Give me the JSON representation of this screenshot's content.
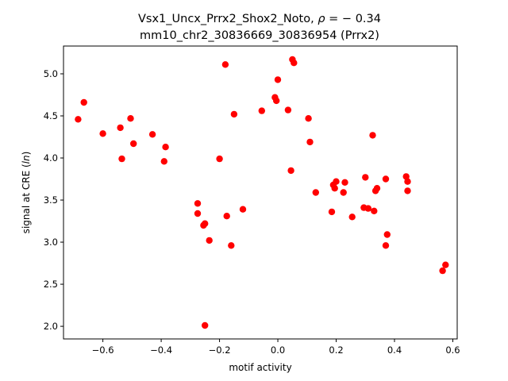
{
  "chart_data": {
    "type": "scatter",
    "title_prefix": "Vsx1_Uncx_Prrx2_Shox2_Noto, ",
    "title_rho_symbol": "ρ",
    "title_rho_value": " = − 0.34",
    "title_line2": "mm10_chr2_30836669_30836954 (Prrx2)",
    "xlabel": "motif activity",
    "ylabel_prefix": "signal at CRE (",
    "ylabel_italic": "ln",
    "ylabel_suffix": ")",
    "xlim": [
      -0.735,
      0.615
    ],
    "ylim": [
      1.85,
      5.33
    ],
    "xticks": [
      -0.6,
      -0.4,
      -0.2,
      0.0,
      0.2,
      0.4,
      0.6
    ],
    "xtick_labels": [
      "−0.6",
      "−0.4",
      "−0.2",
      "0.0",
      "0.2",
      "0.4",
      "0.6"
    ],
    "yticks": [
      2.0,
      2.5,
      3.0,
      3.5,
      4.0,
      4.5,
      5.0
    ],
    "ytick_labels": [
      "2.0",
      "2.5",
      "3.0",
      "3.5",
      "4.0",
      "4.5",
      "5.0"
    ],
    "grid": false,
    "marker_color": "#ff0000",
    "points": [
      [
        -0.685,
        4.46
      ],
      [
        -0.665,
        4.66
      ],
      [
        -0.6,
        4.29
      ],
      [
        -0.54,
        4.36
      ],
      [
        -0.535,
        3.99
      ],
      [
        -0.505,
        4.47
      ],
      [
        -0.495,
        4.17
      ],
      [
        -0.43,
        4.28
      ],
      [
        -0.385,
        4.13
      ],
      [
        -0.39,
        3.96
      ],
      [
        -0.275,
        3.46
      ],
      [
        -0.275,
        3.34
      ],
      [
        -0.255,
        3.2
      ],
      [
        -0.25,
        3.22
      ],
      [
        -0.235,
        3.02
      ],
      [
        -0.25,
        2.01
      ],
      [
        -0.2,
        3.99
      ],
      [
        -0.18,
        5.11
      ],
      [
        -0.175,
        3.31
      ],
      [
        -0.16,
        2.96
      ],
      [
        -0.15,
        4.52
      ],
      [
        -0.12,
        3.39
      ],
      [
        -0.055,
        4.56
      ],
      [
        -0.01,
        4.72
      ],
      [
        -0.005,
        4.68
      ],
      [
        0.0,
        4.93
      ],
      [
        0.035,
        4.57
      ],
      [
        0.045,
        3.85
      ],
      [
        0.05,
        5.17
      ],
      [
        0.055,
        5.13
      ],
      [
        0.105,
        4.47
      ],
      [
        0.11,
        4.19
      ],
      [
        0.13,
        3.59
      ],
      [
        0.185,
        3.36
      ],
      [
        0.19,
        3.68
      ],
      [
        0.195,
        3.64
      ],
      [
        0.2,
        3.72
      ],
      [
        0.225,
        3.59
      ],
      [
        0.23,
        3.71
      ],
      [
        0.255,
        3.3
      ],
      [
        0.295,
        3.41
      ],
      [
        0.3,
        3.77
      ],
      [
        0.31,
        3.4
      ],
      [
        0.325,
        4.27
      ],
      [
        0.33,
        3.37
      ],
      [
        0.335,
        3.61
      ],
      [
        0.34,
        3.64
      ],
      [
        0.37,
        3.75
      ],
      [
        0.37,
        2.96
      ],
      [
        0.375,
        3.09
      ],
      [
        0.44,
        3.78
      ],
      [
        0.445,
        3.72
      ],
      [
        0.445,
        3.61
      ],
      [
        0.565,
        2.66
      ],
      [
        0.575,
        2.73
      ]
    ]
  }
}
